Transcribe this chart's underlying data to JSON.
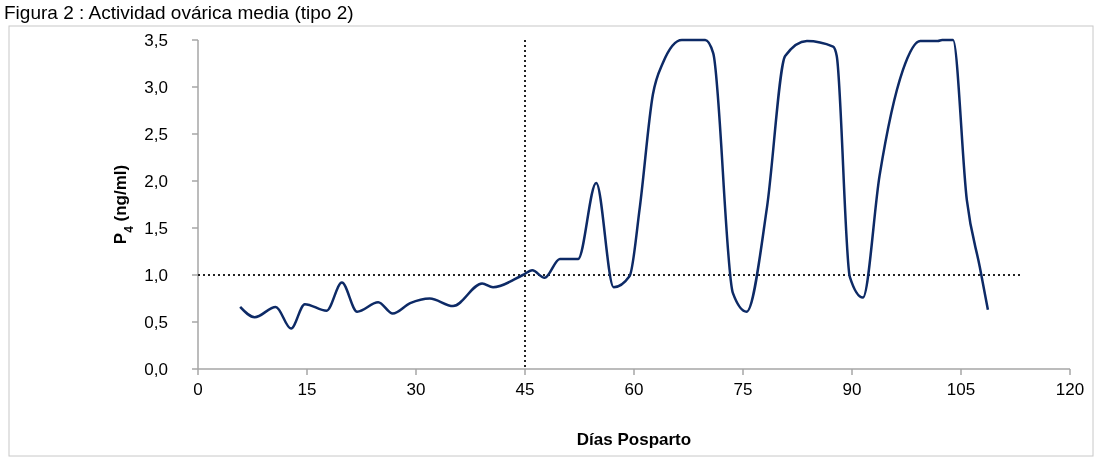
{
  "chart_data": {
    "type": "line",
    "title": "Figura 2 : Actividad ovárica media (tipo 2)",
    "xlabel": "Días Posparto",
    "ylabel": "P$_{4}$ (ng/ml)",
    "xlim": [
      0,
      120
    ],
    "xticks": [
      0,
      15,
      30,
      45,
      60,
      75,
      90,
      105,
      120
    ],
    "ylim": [
      0,
      3.5
    ],
    "yticks": [
      {
        "value": 0,
        "label": "0,0"
      },
      {
        "value": 0.5,
        "label": "0,5"
      },
      {
        "value": 1,
        "label": "1,0"
      },
      {
        "value": 1.5,
        "label": "1,5"
      },
      {
        "value": 2,
        "label": "2,0"
      },
      {
        "value": 2.5,
        "label": "2,5"
      },
      {
        "value": 3,
        "label": "3,0"
      },
      {
        "value": 3.5,
        "label": "3,5"
      }
    ],
    "grid": false,
    "marker": "none",
    "line_style": "solid",
    "ref_lines": [
      {
        "axis": "y",
        "value": 1,
        "color": "#222222",
        "line_style": "dotted"
      },
      {
        "axis": "x",
        "value": 45,
        "color": "#222222",
        "line_style": "dotted"
      }
    ],
    "series": [
      {
        "color": "#0d2a66",
        "x": [
          5.8,
          7.8,
          10.7,
          12.8,
          14.7,
          17.7,
          19.8,
          21.9,
          24.8,
          26.8,
          29.2,
          31.9,
          35.1,
          39.1,
          40.6,
          44.7,
          46.0,
          47.7,
          49.8,
          52.3,
          54.8,
          57.2,
          59.4,
          60.8,
          62.6,
          64.0,
          66.6,
          69.8,
          70.9,
          73.6,
          75.5,
          78.3,
          80.8,
          83.8,
          87.4,
          87.9,
          89.7,
          91.5,
          93.8,
          97.0,
          99.4,
          101.8,
          102.4,
          103.9,
          105.8,
          107.6,
          108.7
        ],
        "values": [
          0.66,
          0.55,
          0.66,
          0.43,
          0.69,
          0.62,
          0.92,
          0.61,
          0.71,
          0.59,
          0.7,
          0.75,
          0.67,
          0.91,
          0.87,
          1.0,
          1.05,
          0.97,
          1.17,
          1.17,
          1.98,
          0.87,
          0.99,
          1.72,
          2.92,
          3.26,
          3.5,
          3.5,
          3.36,
          0.81,
          0.61,
          1.72,
          3.33,
          3.49,
          3.43,
          3.33,
          0.98,
          0.76,
          2.06,
          3.18,
          3.49,
          3.49,
          3.5,
          3.5,
          1.8,
          1.08,
          0.63
        ]
      }
    ]
  }
}
